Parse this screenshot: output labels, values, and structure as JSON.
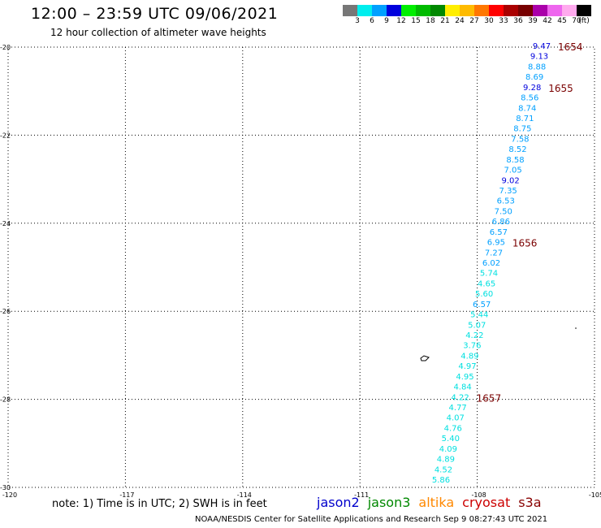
{
  "header": {
    "title": "12:00 – 23:59 UTC 09/06/2021",
    "subtitle": "12 hour collection of altimeter wave heights"
  },
  "colorbar": {
    "unit": "(ft)",
    "bins": [
      {
        "label": "3",
        "color": "#777777"
      },
      {
        "label": "6",
        "color": "#00eeee"
      },
      {
        "label": "9",
        "color": "#00a0ff"
      },
      {
        "label": "12",
        "color": "#0000dd"
      },
      {
        "label": "15",
        "color": "#00ee00"
      },
      {
        "label": "18",
        "color": "#00bb00"
      },
      {
        "label": "21",
        "color": "#008800"
      },
      {
        "label": "24",
        "color": "#ffee00"
      },
      {
        "label": "27",
        "color": "#ffbb00"
      },
      {
        "label": "30",
        "color": "#ff7700"
      },
      {
        "label": "33",
        "color": "#ff0000"
      },
      {
        "label": "36",
        "color": "#aa0000"
      },
      {
        "label": "39",
        "color": "#770000"
      },
      {
        "label": "42",
        "color": "#aa00aa"
      },
      {
        "label": "45",
        "color": "#ee66ee"
      },
      {
        "label": "70",
        "color": "#ffaaee"
      },
      {
        "label": "",
        "color": "#000000"
      }
    ]
  },
  "map": {
    "lon_range": [
      -120,
      -105
    ],
    "lat_range": [
      -30,
      -20
    ],
    "x_ticks": [
      "-120",
      "-117",
      "-114",
      "-111",
      "-108",
      "-105"
    ],
    "y_ticks": [
      "-20",
      "-22",
      "-24",
      "-26",
      "-28",
      "-30"
    ],
    "track": [
      {
        "v": "9.47",
        "c": "#0000dd"
      },
      {
        "v": "9.13",
        "c": "#0000dd"
      },
      {
        "v": "8.88",
        "c": "#00a0ff"
      },
      {
        "v": "8.69",
        "c": "#00a0ff"
      },
      {
        "v": "9.28",
        "c": "#0000dd"
      },
      {
        "v": "8.56",
        "c": "#00a0ff"
      },
      {
        "v": "8.74",
        "c": "#00a0ff"
      },
      {
        "v": "8.71",
        "c": "#00a0ff"
      },
      {
        "v": "8.75",
        "c": "#00a0ff"
      },
      {
        "v": "7.58",
        "c": "#00a0ff"
      },
      {
        "v": "8.52",
        "c": "#00a0ff"
      },
      {
        "v": "8.58",
        "c": "#00a0ff"
      },
      {
        "v": "7.05",
        "c": "#00a0ff"
      },
      {
        "v": "9.02",
        "c": "#0000dd"
      },
      {
        "v": "7.35",
        "c": "#00a0ff"
      },
      {
        "v": "6.53",
        "c": "#00a0ff"
      },
      {
        "v": "7.50",
        "c": "#00a0ff"
      },
      {
        "v": "6.86",
        "c": "#00a0ff"
      },
      {
        "v": "6.57",
        "c": "#00a0ff"
      },
      {
        "v": "6.95",
        "c": "#00a0ff"
      },
      {
        "v": "7.27",
        "c": "#00a0ff"
      },
      {
        "v": "6.02",
        "c": "#00a0ff"
      },
      {
        "v": "5.74",
        "c": "#00e0e0"
      },
      {
        "v": "4.65",
        "c": "#00e0e0"
      },
      {
        "v": "5.60",
        "c": "#00e0e0"
      },
      {
        "v": "6.57",
        "c": "#00a0ff"
      },
      {
        "v": "5.44",
        "c": "#00e0e0"
      },
      {
        "v": "5.07",
        "c": "#00e0e0"
      },
      {
        "v": "4.22",
        "c": "#00e0e0"
      },
      {
        "v": "3.76",
        "c": "#00e0e0"
      },
      {
        "v": "4.89",
        "c": "#00e0e0"
      },
      {
        "v": "4.97",
        "c": "#00e0e0"
      },
      {
        "v": "4.95",
        "c": "#00e0e0"
      },
      {
        "v": "4.84",
        "c": "#00e0e0"
      },
      {
        "v": "4.22",
        "c": "#00e0e0"
      },
      {
        "v": "4.77",
        "c": "#00e0e0"
      },
      {
        "v": "4.07",
        "c": "#00e0e0"
      },
      {
        "v": "4.76",
        "c": "#00e0e0"
      },
      {
        "v": "5.40",
        "c": "#00e0e0"
      },
      {
        "v": "4.09",
        "c": "#00e0e0"
      },
      {
        "v": "4.89",
        "c": "#00e0e0"
      },
      {
        "v": "4.52",
        "c": "#00e0e0"
      },
      {
        "v": "5.86",
        "c": "#00e0e0"
      }
    ],
    "pass_labels": [
      "1654",
      "1655",
      "1656",
      "1657"
    ],
    "pass_label_color": "#7a0000"
  },
  "note": "note:  1) Time is in UTC;  2) SWH is in feet",
  "satellites": [
    {
      "name": "jason2",
      "color": "#0000cc"
    },
    {
      "name": "jason3",
      "color": "#008800"
    },
    {
      "name": "altika",
      "color": "#ff8800"
    },
    {
      "name": "cryosat",
      "color": "#cc0000"
    },
    {
      "name": "s3a",
      "color": "#880000"
    }
  ],
  "footer": "NOAA/NESDIS Center for Satellite Applications and Research    Sep  9 08:27:43 UTC 2021"
}
